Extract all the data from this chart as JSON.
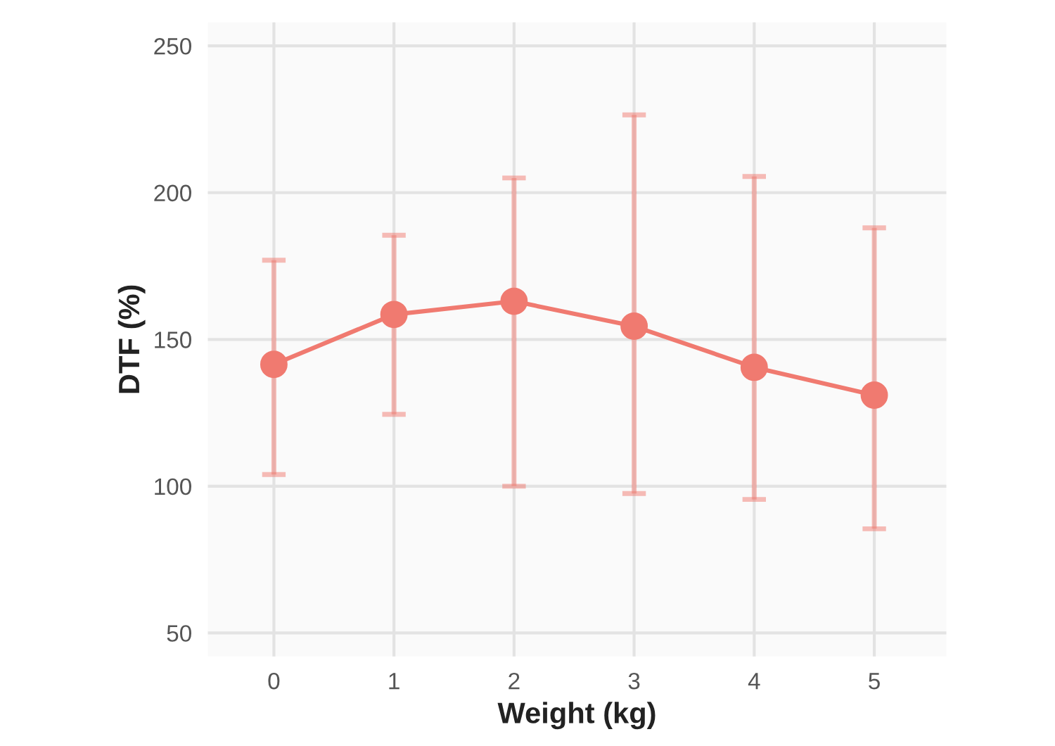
{
  "chart_data": {
    "type": "line",
    "xlabel": "Weight (kg)",
    "ylabel": "DTF (%)",
    "x": [
      0,
      1,
      2,
      3,
      4,
      5
    ],
    "series": [
      {
        "color": "#f07a70",
        "values": [
          141.5,
          158.5,
          163,
          154.5,
          140.5,
          131
        ],
        "errors": [
          [
            104,
            177
          ],
          [
            124.5,
            185.5
          ],
          [
            100,
            205
          ],
          [
            97.5,
            226.5
          ],
          [
            95.5,
            205.5
          ],
          [
            85.5,
            188
          ]
        ]
      }
    ],
    "xlim": [
      -0.55,
      5.6
    ],
    "ylim": [
      42,
      258
    ],
    "xticks": [
      0,
      1,
      2,
      3,
      4,
      5
    ],
    "yticks": [
      50,
      100,
      150,
      200,
      250
    ],
    "grid": true,
    "marker": "circle",
    "line_style": "solid"
  }
}
